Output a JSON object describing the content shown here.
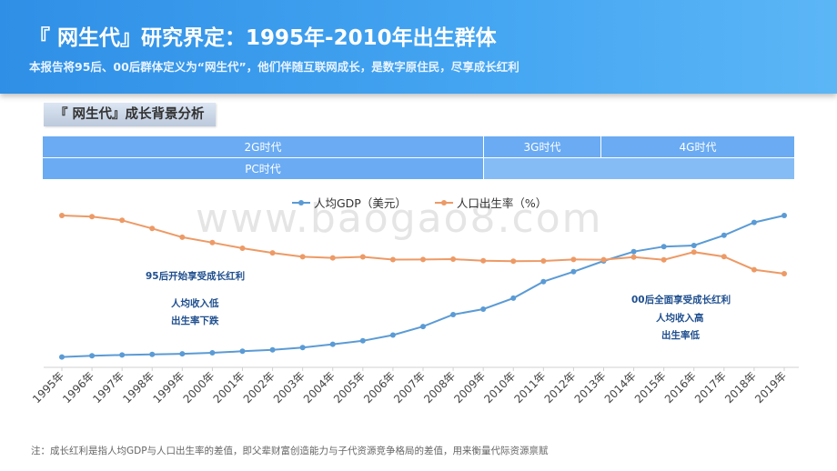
{
  "header": {
    "title": "『 网生代』研究界定：1995年-2010年出生群体",
    "subtitle": "本报告将95后、00后群体定义为“网生代”，他们伴随互联网成长，是数字原住民，尽享成长红利"
  },
  "section_title": "『 网生代』成长背景分析",
  "eras": {
    "network": [
      "2G时代",
      "3G时代",
      "4G时代"
    ],
    "pc": "PC时代"
  },
  "annotations": {
    "left_title": "95后开始享受成长红利",
    "left_lines": [
      "人均收入低",
      "出生率下跌"
    ],
    "right_title": "00后全面享受成长红利",
    "right_lines": [
      "人均收入高",
      "出生率低"
    ]
  },
  "watermark": "www.baogao8.com",
  "note": "注：成长红利是指人均GDP与人口出生率的差值，即父辈财富创造能力与子代资源竞争格局的差值，用来衡量代际资源禀赋",
  "colors": {
    "gdp": "#5b9bd5",
    "birth": "#ed9a66",
    "era": "#6aabf3"
  },
  "chart_data": {
    "type": "line",
    "categories": [
      "1995年",
      "1996年",
      "1997年",
      "1998年",
      "1999年",
      "2000年",
      "2001年",
      "2002年",
      "2003年",
      "2004年",
      "2005年",
      "2006年",
      "2007年",
      "2008年",
      "2009年",
      "2010年",
      "2011年",
      "2012年",
      "2013年",
      "2014年",
      "2015年",
      "2016年",
      "2017年",
      "2018年",
      "2019年"
    ],
    "series": [
      {
        "name": "人均GDP（美元）",
        "color": "#5b9bd5",
        "values": [
          0.12,
          0.6,
          0.85,
          1.05,
          1.3,
          1.65,
          2.2,
          2.75,
          3.55,
          4.75,
          6.0,
          8.1,
          11.2,
          15.5,
          17.5,
          21.5,
          27.5,
          31.1,
          35.0,
          38.4,
          40.2,
          40.6,
          44.3,
          49.0,
          51.5
        ]
      },
      {
        "name": "人口出生率（%）",
        "color": "#ed9a66",
        "values": [
          17.12,
          16.98,
          16.57,
          15.64,
          14.64,
          14.03,
          13.38,
          12.86,
          12.41,
          12.29,
          12.4,
          12.09,
          12.1,
          12.14,
          11.95,
          11.9,
          11.93,
          12.1,
          12.08,
          12.37,
          12.07,
          12.95,
          12.43,
          10.94,
          10.48
        ]
      }
    ]
  }
}
